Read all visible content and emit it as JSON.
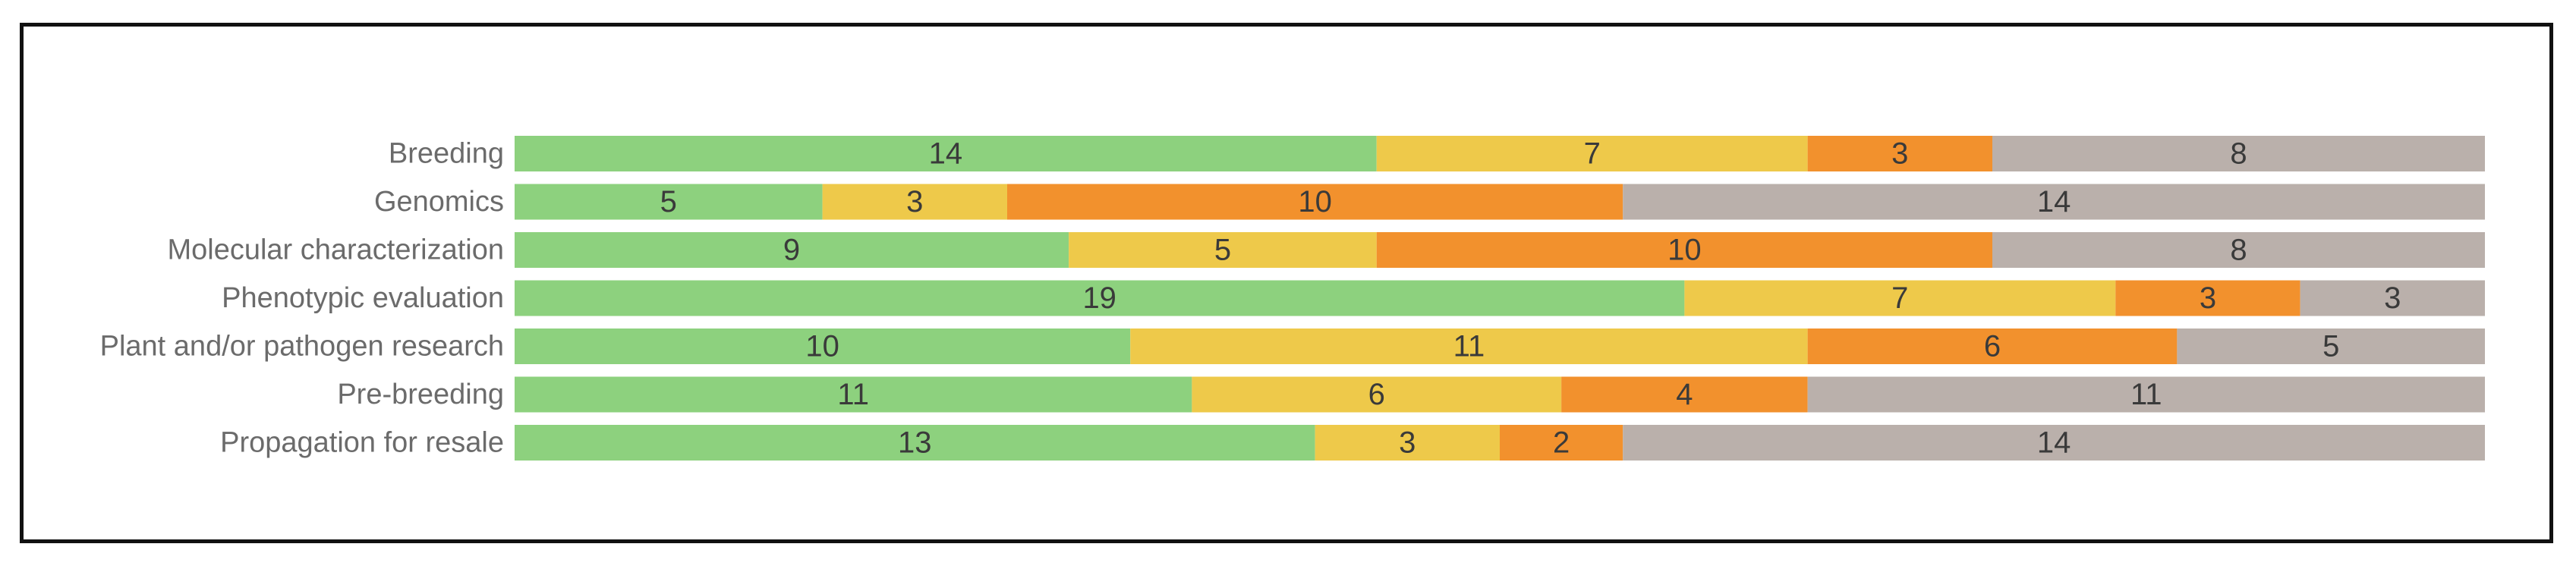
{
  "chart_data": {
    "type": "bar",
    "orientation": "horizontal",
    "stacked": true,
    "title": "",
    "xlabel": "",
    "ylabel": "",
    "legend": "none",
    "grid": false,
    "categories": [
      "Breeding",
      "Genomics",
      "Molecular characterization",
      "Phenotypic evaluation",
      "Plant and/or pathogen research",
      "Pre-breeding",
      "Propagation for resale"
    ],
    "series": [
      {
        "color": "#8dd17e",
        "values": [
          14,
          5,
          9,
          19,
          10,
          11,
          13
        ]
      },
      {
        "color": "#eec94a",
        "values": [
          7,
          3,
          5,
          7,
          11,
          6,
          3
        ]
      },
      {
        "color": "#f2912d",
        "values": [
          3,
          10,
          10,
          3,
          6,
          4,
          2
        ]
      },
      {
        "color": "#bab0ab",
        "values": [
          8,
          14,
          8,
          3,
          5,
          11,
          14
        ]
      }
    ]
  }
}
